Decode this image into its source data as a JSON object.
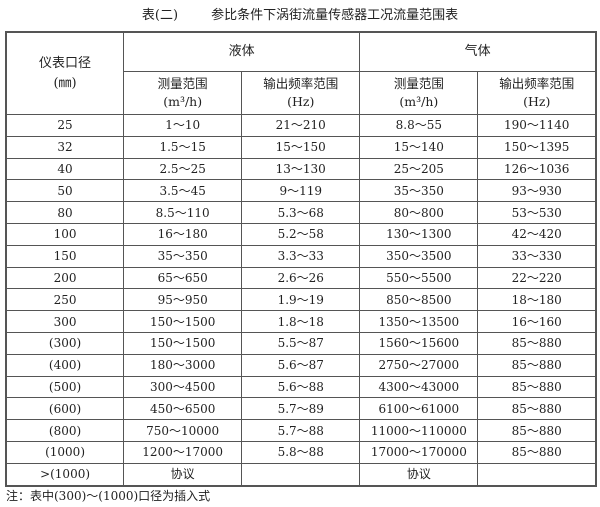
{
  "title": "表(二)        参比条件下涡街流量传感器工况流量范围表",
  "header": {
    "diameter": "仪表口径",
    "diameter_unit": "(㎜)",
    "liquid": "液体",
    "gas": "气体",
    "flow_range": "测量范围",
    "flow_unit": "(m³/h)",
    "freq_range": "输出频率范围",
    "freq_unit": "(Hz)"
  },
  "rows": [
    [
      "25",
      "1～10",
      "21～210",
      "8.8～55",
      "190～1140"
    ],
    [
      "32",
      "1.5～15",
      "15～150",
      "15～140",
      "150～1395"
    ],
    [
      "40",
      "2.5～25",
      "13～130",
      "25～205",
      "126～1036"
    ],
    [
      "50",
      "3.5～45",
      "9～119",
      "35～350",
      "93～930"
    ],
    [
      "80",
      "8.5～110",
      "5.3～68",
      "80～800",
      "53～530"
    ],
    [
      "100",
      "16～180",
      "5.2～58",
      "130～1300",
      "42～420"
    ],
    [
      "150",
      "35～350",
      "3.3～33",
      "350～3500",
      "33～330"
    ],
    [
      "200",
      "65～650",
      "2.6～26",
      "550～5500",
      "22～220"
    ],
    [
      "250",
      "95～950",
      "1.9～19",
      "850～8500",
      "18～180"
    ],
    [
      "300",
      "150～1500",
      "1.8～18",
      "1350～13500",
      "16～160"
    ],
    [
      "(300)",
      "150～1500",
      "5.5～87",
      "1560～15600",
      "85～880"
    ],
    [
      "(400)",
      "180～3000",
      "5.6～87",
      "2750～27000",
      "85～880"
    ],
    [
      "(500)",
      "300～4500",
      "5.6～88",
      "4300～43000",
      "85～880"
    ],
    [
      "(600)",
      "450～6500",
      "5.7～89",
      "6100～61000",
      "85～880"
    ],
    [
      "(800)",
      "750～10000",
      "5.7～88",
      "11000～110000",
      "85～880"
    ],
    [
      "(1000)",
      "1200～17000",
      "5.8～88",
      "17000～170000",
      "85～880"
    ],
    [
      ">(1000)",
      "协议",
      "",
      "协议",
      ""
    ]
  ],
  "note": "注：表中(300)～(1000)口径为插入式"
}
